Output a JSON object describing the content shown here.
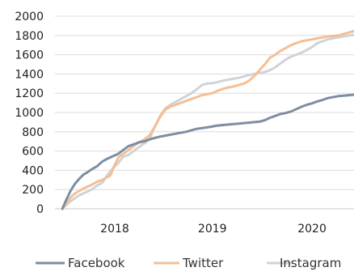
{
  "chart_data": {
    "type": "line",
    "title": "",
    "xlabel": "",
    "ylabel": "",
    "ylim": [
      0,
      2000
    ],
    "yticks": [
      0,
      200,
      400,
      600,
      800,
      1000,
      1200,
      1400,
      1600,
      1800,
      2000
    ],
    "ytick_labels": [
      "0",
      "200",
      "400",
      "600",
      "800",
      "1000",
      "1200",
      "1400",
      "1600",
      "1800",
      "2000"
    ],
    "xlim": [
      2017.55,
      2020.4
    ],
    "xtick_labels": [
      {
        "label": "2018",
        "value": 2018.12
      },
      {
        "label": "2019",
        "value": 2019.05
      },
      {
        "label": "2020",
        "value": 2020.0
      }
    ],
    "grid": "horizontal",
    "legend_position": "bottom",
    "series": [
      {
        "name": "Facebook",
        "color": "#7d8ea3",
        "points": [
          [
            2017.62,
            0
          ],
          [
            2017.66,
            100
          ],
          [
            2017.7,
            190
          ],
          [
            2017.74,
            260
          ],
          [
            2017.78,
            310
          ],
          [
            2017.82,
            355
          ],
          [
            2017.86,
            380
          ],
          [
            2017.9,
            410
          ],
          [
            2017.95,
            440
          ],
          [
            2018.0,
            490
          ],
          [
            2018.05,
            520
          ],
          [
            2018.1,
            545
          ],
          [
            2018.15,
            570
          ],
          [
            2018.2,
            610
          ],
          [
            2018.25,
            650
          ],
          [
            2018.3,
            670
          ],
          [
            2018.35,
            690
          ],
          [
            2018.4,
            700
          ],
          [
            2018.45,
            720
          ],
          [
            2018.5,
            735
          ],
          [
            2018.55,
            750
          ],
          [
            2018.6,
            760
          ],
          [
            2018.7,
            780
          ],
          [
            2018.8,
            800
          ],
          [
            2018.9,
            830
          ],
          [
            2019.0,
            845
          ],
          [
            2019.1,
            865
          ],
          [
            2019.2,
            875
          ],
          [
            2019.3,
            885
          ],
          [
            2019.4,
            895
          ],
          [
            2019.5,
            905
          ],
          [
            2019.55,
            920
          ],
          [
            2019.6,
            945
          ],
          [
            2019.65,
            965
          ],
          [
            2019.7,
            985
          ],
          [
            2019.75,
            995
          ],
          [
            2019.8,
            1010
          ],
          [
            2019.85,
            1035
          ],
          [
            2019.9,
            1060
          ],
          [
            2019.95,
            1080
          ],
          [
            2020.0,
            1095
          ],
          [
            2020.05,
            1115
          ],
          [
            2020.1,
            1130
          ],
          [
            2020.15,
            1150
          ],
          [
            2020.2,
            1160
          ],
          [
            2020.25,
            1170
          ],
          [
            2020.3,
            1175
          ],
          [
            2020.35,
            1180
          ],
          [
            2020.4,
            1185
          ]
        ]
      },
      {
        "name": "Twitter",
        "color": "#f5be94",
        "points": [
          [
            2017.62,
            0
          ],
          [
            2017.66,
            60
          ],
          [
            2017.7,
            120
          ],
          [
            2017.74,
            160
          ],
          [
            2017.78,
            185
          ],
          [
            2017.82,
            210
          ],
          [
            2017.86,
            230
          ],
          [
            2017.9,
            250
          ],
          [
            2017.95,
            280
          ],
          [
            2018.0,
            300
          ],
          [
            2018.05,
            330
          ],
          [
            2018.08,
            350
          ],
          [
            2018.12,
            460
          ],
          [
            2018.16,
            540
          ],
          [
            2018.2,
            570
          ],
          [
            2018.25,
            610
          ],
          [
            2018.3,
            650
          ],
          [
            2018.35,
            690
          ],
          [
            2018.4,
            720
          ],
          [
            2018.45,
            760
          ],
          [
            2018.5,
            850
          ],
          [
            2018.55,
            950
          ],
          [
            2018.6,
            1030
          ],
          [
            2018.65,
            1060
          ],
          [
            2018.7,
            1080
          ],
          [
            2018.75,
            1100
          ],
          [
            2018.8,
            1120
          ],
          [
            2018.85,
            1140
          ],
          [
            2018.9,
            1160
          ],
          [
            2018.95,
            1180
          ],
          [
            2019.0,
            1190
          ],
          [
            2019.05,
            1200
          ],
          [
            2019.1,
            1225
          ],
          [
            2019.15,
            1245
          ],
          [
            2019.2,
            1260
          ],
          [
            2019.25,
            1270
          ],
          [
            2019.3,
            1285
          ],
          [
            2019.35,
            1300
          ],
          [
            2019.4,
            1330
          ],
          [
            2019.45,
            1380
          ],
          [
            2019.5,
            1440
          ],
          [
            2019.55,
            1500
          ],
          [
            2019.6,
            1570
          ],
          [
            2019.65,
            1600
          ],
          [
            2019.7,
            1640
          ],
          [
            2019.75,
            1670
          ],
          [
            2019.8,
            1700
          ],
          [
            2019.85,
            1720
          ],
          [
            2019.9,
            1740
          ],
          [
            2019.95,
            1750
          ],
          [
            2020.0,
            1760
          ],
          [
            2020.05,
            1770
          ],
          [
            2020.1,
            1780
          ],
          [
            2020.15,
            1790
          ],
          [
            2020.2,
            1795
          ],
          [
            2020.25,
            1800
          ],
          [
            2020.3,
            1815
          ],
          [
            2020.35,
            1830
          ],
          [
            2020.4,
            1845
          ]
        ]
      },
      {
        "name": "Instagram",
        "color": "#cfd3d8",
        "points": [
          [
            2017.62,
            0
          ],
          [
            2017.66,
            40
          ],
          [
            2017.7,
            80
          ],
          [
            2017.74,
            110
          ],
          [
            2017.78,
            140
          ],
          [
            2017.82,
            160
          ],
          [
            2017.86,
            180
          ],
          [
            2017.9,
            200
          ],
          [
            2017.95,
            240
          ],
          [
            2018.0,
            270
          ],
          [
            2018.05,
            350
          ],
          [
            2018.1,
            420
          ],
          [
            2018.15,
            470
          ],
          [
            2018.2,
            540
          ],
          [
            2018.25,
            560
          ],
          [
            2018.3,
            600
          ],
          [
            2018.35,
            640
          ],
          [
            2018.4,
            680
          ],
          [
            2018.45,
            720
          ],
          [
            2018.5,
            850
          ],
          [
            2018.55,
            960
          ],
          [
            2018.6,
            1040
          ],
          [
            2018.65,
            1080
          ],
          [
            2018.7,
            1110
          ],
          [
            2018.75,
            1140
          ],
          [
            2018.8,
            1170
          ],
          [
            2018.85,
            1200
          ],
          [
            2018.9,
            1240
          ],
          [
            2018.95,
            1285
          ],
          [
            2019.0,
            1300
          ],
          [
            2019.05,
            1305
          ],
          [
            2019.1,
            1315
          ],
          [
            2019.15,
            1330
          ],
          [
            2019.2,
            1340
          ],
          [
            2019.25,
            1350
          ],
          [
            2019.3,
            1360
          ],
          [
            2019.35,
            1375
          ],
          [
            2019.4,
            1390
          ],
          [
            2019.45,
            1400
          ],
          [
            2019.5,
            1410
          ],
          [
            2019.55,
            1420
          ],
          [
            2019.6,
            1440
          ],
          [
            2019.65,
            1470
          ],
          [
            2019.7,
            1510
          ],
          [
            2019.75,
            1550
          ],
          [
            2019.8,
            1580
          ],
          [
            2019.85,
            1600
          ],
          [
            2019.9,
            1620
          ],
          [
            2019.95,
            1650
          ],
          [
            2020.0,
            1680
          ],
          [
            2020.05,
            1720
          ],
          [
            2020.1,
            1740
          ],
          [
            2020.15,
            1760
          ],
          [
            2020.2,
            1770
          ],
          [
            2020.25,
            1780
          ],
          [
            2020.3,
            1790
          ],
          [
            2020.35,
            1800
          ],
          [
            2020.4,
            1805
          ]
        ]
      }
    ]
  }
}
